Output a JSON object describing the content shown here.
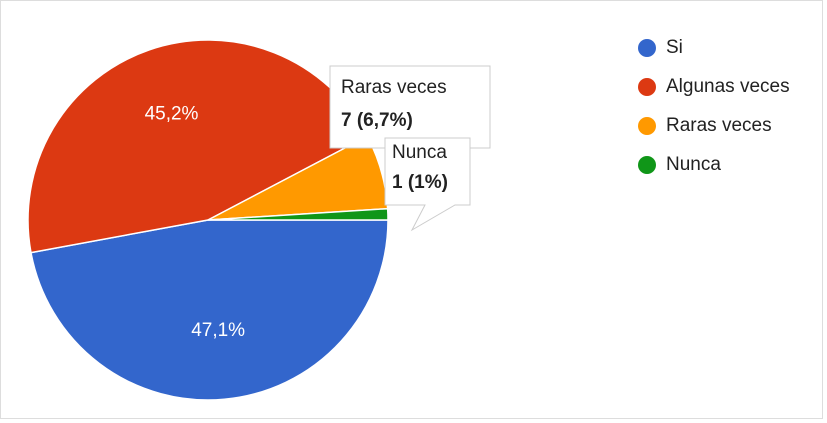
{
  "chart_data": {
    "type": "pie",
    "categories": [
      "Si",
      "Algunas veces",
      "Raras veces",
      "Nunca"
    ],
    "values": [
      47.1,
      45.2,
      6.7,
      1
    ],
    "value_labels": [
      "47,1%",
      "45,2%",
      null,
      null
    ],
    "colors": [
      "#3366cc",
      "#dc3912",
      "#ff9900",
      "#109618"
    ],
    "tooltips": [
      {
        "title": "Raras veces",
        "text": "7 (6,7%)"
      },
      {
        "title": "Nunca",
        "text": "1 (1%)"
      }
    ]
  }
}
